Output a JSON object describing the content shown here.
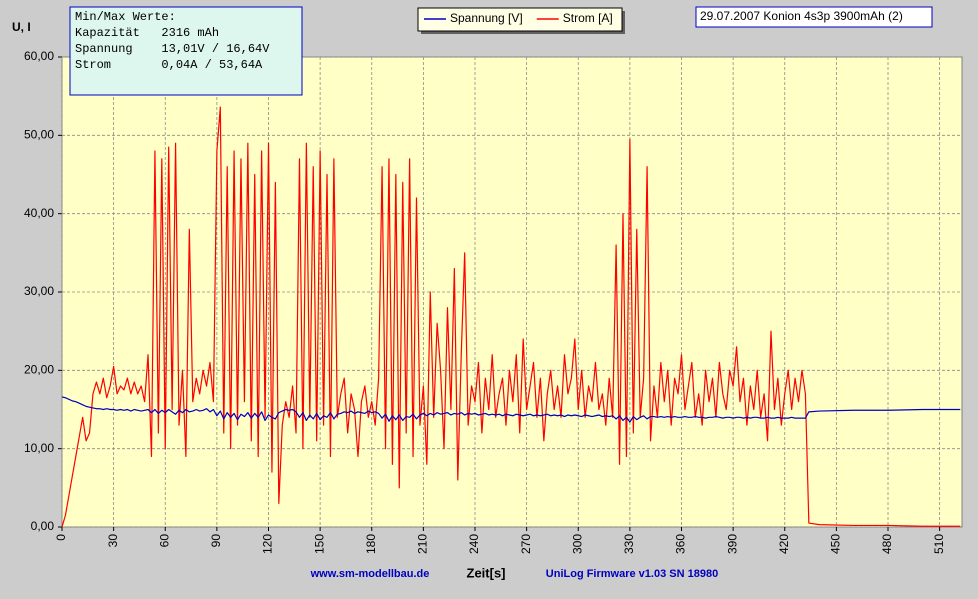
{
  "chart_data": {
    "type": "line",
    "title": "29.07.2007 Konion 4s3p 3900mAh (2)",
    "y_label": "U, I",
    "x_label": "Zeit[s]",
    "footer_left": "www.sm-modellbau.de",
    "footer_right": "UniLog Firmware v1.03 SN 18980",
    "info_box": [
      "Min/Max Werte:",
      "Kapazität   2316 mAh",
      "Spannung    13,01V / 16,64V",
      "Strom       0,04A / 53,64A"
    ],
    "grid": true,
    "legend": "top",
    "xlim": [
      0,
      523
    ],
    "ylim": [
      0,
      60
    ],
    "xticks": [
      0,
      30,
      60,
      90,
      120,
      150,
      180,
      210,
      240,
      270,
      300,
      330,
      360,
      390,
      420,
      450,
      480,
      510
    ],
    "yticks": [
      {
        "value": 0,
        "label": "0,00"
      },
      {
        "value": 10,
        "label": "10,00"
      },
      {
        "value": 20,
        "label": "20,00"
      },
      {
        "value": 30,
        "label": "30,00"
      },
      {
        "value": 40,
        "label": "40,00"
      },
      {
        "value": 50,
        "label": "50,00"
      },
      {
        "value": 60,
        "label": "60,00"
      }
    ],
    "x": [
      0,
      2,
      4,
      6,
      8,
      10,
      12,
      14,
      16,
      18,
      20,
      22,
      24,
      26,
      28,
      30,
      32,
      34,
      36,
      38,
      40,
      42,
      44,
      46,
      48,
      50,
      52,
      54,
      56,
      58,
      60,
      62,
      64,
      66,
      68,
      70,
      72,
      74,
      76,
      78,
      80,
      82,
      84,
      86,
      88,
      90,
      92,
      94,
      96,
      98,
      100,
      102,
      104,
      106,
      108,
      110,
      112,
      114,
      116,
      118,
      120,
      122,
      124,
      126,
      128,
      130,
      132,
      134,
      136,
      138,
      140,
      142,
      144,
      146,
      148,
      150,
      152,
      154,
      156,
      158,
      160,
      162,
      164,
      166,
      168,
      170,
      172,
      174,
      176,
      178,
      180,
      182,
      184,
      186,
      188,
      190,
      192,
      194,
      196,
      198,
      200,
      202,
      204,
      206,
      208,
      210,
      212,
      214,
      216,
      218,
      220,
      222,
      224,
      226,
      228,
      230,
      232,
      234,
      236,
      238,
      240,
      242,
      244,
      246,
      248,
      250,
      252,
      254,
      256,
      258,
      260,
      262,
      264,
      266,
      268,
      270,
      272,
      274,
      276,
      278,
      280,
      282,
      284,
      286,
      288,
      290,
      292,
      294,
      296,
      298,
      300,
      302,
      304,
      306,
      308,
      310,
      312,
      314,
      316,
      318,
      320,
      322,
      324,
      326,
      328,
      330,
      332,
      334,
      336,
      338,
      340,
      342,
      344,
      346,
      348,
      350,
      352,
      354,
      356,
      358,
      360,
      362,
      364,
      366,
      368,
      370,
      372,
      374,
      376,
      378,
      380,
      382,
      384,
      386,
      388,
      390,
      392,
      394,
      396,
      398,
      400,
      402,
      404,
      406,
      408,
      410,
      412,
      414,
      416,
      418,
      420,
      422,
      424,
      426,
      428,
      430,
      432,
      434,
      440,
      460,
      480,
      500,
      522
    ],
    "series": [
      {
        "name": "Spannung [V]",
        "color": "#0000c0",
        "values": [
          16.6,
          16.5,
          16.3,
          16.1,
          16.0,
          15.8,
          15.6,
          15.4,
          15.3,
          15.2,
          15.1,
          15.1,
          15.0,
          15.1,
          15.0,
          15.0,
          14.9,
          15.0,
          14.9,
          15.0,
          14.8,
          15.0,
          14.9,
          14.8,
          14.9,
          15.0,
          14.6,
          15.0,
          14.5,
          14.9,
          14.6,
          15.0,
          14.7,
          14.4,
          14.9,
          14.6,
          15.0,
          14.7,
          14.8,
          15.0,
          14.8,
          14.9,
          15.1,
          14.7,
          15.0,
          14.2,
          14.8,
          13.8,
          14.6,
          14.0,
          14.5,
          13.7,
          14.4,
          14.1,
          14.6,
          13.9,
          14.5,
          14.0,
          14.7,
          13.6,
          14.3,
          14.0,
          13.8,
          14.6,
          14.8,
          15.0,
          14.9,
          15.0,
          14.7,
          14.0,
          14.6,
          13.6,
          14.3,
          13.8,
          14.5,
          13.7,
          14.2,
          14.0,
          14.6,
          13.8,
          14.4,
          14.5,
          14.7,
          14.6,
          14.8,
          14.5,
          14.7,
          14.6,
          14.5,
          14.8,
          14.6,
          14.7,
          14.5,
          13.9,
          14.4,
          13.5,
          14.2,
          13.7,
          14.3,
          13.6,
          14.1,
          14.0,
          14.4,
          13.8,
          14.3,
          14.5,
          14.2,
          14.5,
          14.3,
          14.6,
          14.4,
          14.5,
          14.6,
          14.3,
          14.5,
          14.4,
          14.6,
          14.3,
          14.5,
          14.4,
          14.5,
          14.3,
          14.4,
          14.5,
          14.3,
          14.4,
          14.3,
          14.4,
          14.2,
          14.4,
          14.3,
          14.2,
          14.4,
          14.3,
          14.2,
          14.3,
          14.4,
          14.2,
          14.3,
          14.2,
          14.3,
          14.4,
          14.2,
          14.3,
          14.2,
          14.3,
          14.1,
          14.3,
          14.2,
          14.3,
          14.2,
          14.1,
          14.3,
          14.2,
          14.1,
          14.2,
          14.3,
          14.1,
          14.2,
          14.1,
          14.2,
          13.8,
          14.2,
          13.6,
          14.0,
          13.4,
          14.1,
          13.7,
          14.0,
          14.2,
          13.8,
          14.1,
          14.1,
          14.0,
          14.1,
          14.0,
          14.1,
          14.0,
          14.1,
          14.0,
          14.0,
          14.1,
          14.0,
          14.0,
          14.1,
          14.0,
          14.0,
          13.9,
          14.0,
          14.0,
          14.1,
          14.0,
          13.9,
          14.0,
          14.0,
          13.9,
          14.0,
          14.0,
          13.9,
          14.0,
          13.9,
          14.0,
          14.0,
          13.9,
          13.9,
          14.0,
          13.9,
          13.9,
          14.0,
          13.9,
          13.9,
          13.9,
          14.0,
          13.9,
          13.9,
          13.9,
          13.9,
          14.7,
          14.8,
          14.9,
          14.9,
          15.0,
          15.0
        ]
      },
      {
        "name": "Strom [A]",
        "color": "#ff0000",
        "values": [
          0,
          1.5,
          4,
          6.5,
          9,
          11.5,
          14,
          11,
          12,
          17,
          18.5,
          17,
          19,
          16.5,
          18,
          20.5,
          17,
          18,
          17.5,
          19,
          17,
          18.5,
          17,
          18,
          16,
          22,
          9,
          48,
          12,
          47,
          10,
          48.5,
          15,
          49,
          13,
          20,
          9,
          38,
          16,
          19,
          17,
          20,
          18,
          21,
          16,
          48,
          53.6,
          12,
          46,
          10,
          48,
          13,
          47,
          16,
          49,
          11,
          45,
          9,
          48,
          14,
          49,
          7,
          44,
          3,
          13,
          16,
          14,
          18,
          12,
          47,
          10,
          49,
          14,
          46,
          11,
          48,
          13,
          45,
          9,
          47,
          14,
          17,
          19,
          12,
          17,
          15,
          9,
          16,
          18,
          14,
          16,
          13,
          19,
          46,
          10,
          47,
          8,
          45,
          5,
          44,
          12,
          47,
          9,
          42,
          13,
          18,
          8,
          30,
          14,
          26,
          20,
          10,
          28,
          15,
          33,
          6,
          22,
          35,
          13,
          18,
          16,
          21,
          12,
          19,
          15,
          22,
          14,
          17,
          19,
          13,
          20,
          16,
          22,
          12,
          24,
          15,
          18,
          21,
          14,
          19,
          11,
          17,
          20,
          15,
          18,
          14,
          22,
          17,
          19,
          24,
          15,
          20,
          14,
          18,
          16,
          21,
          15,
          17,
          13,
          19,
          14,
          36,
          8,
          40,
          9,
          49.5,
          12,
          38,
          14,
          19,
          46,
          11,
          18,
          14,
          21,
          16,
          20,
          13,
          19,
          17,
          22,
          15,
          18,
          21,
          14,
          17,
          13,
          20,
          16,
          19,
          14,
          21,
          17,
          15,
          20,
          18,
          23,
          16,
          19,
          13,
          18,
          15,
          20,
          14,
          17,
          11,
          25,
          15,
          19,
          13,
          17,
          20,
          15,
          19,
          16,
          20,
          17,
          0.5,
          0.3,
          0.2,
          0.2,
          0.1,
          0.1
        ]
      }
    ]
  }
}
